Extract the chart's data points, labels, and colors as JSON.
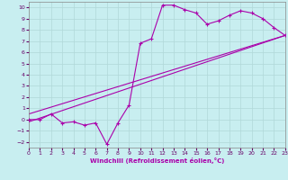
{
  "xlabel": "Windchill (Refroidissement éolien,°C)",
  "bg_color": "#c8eef0",
  "grid_color": "#b0d8d8",
  "line_color": "#aa00aa",
  "markersize": 2.5,
  "xlim": [
    0,
    23
  ],
  "ylim": [
    -2.5,
    10.5
  ],
  "xticks": [
    0,
    1,
    2,
    3,
    4,
    5,
    6,
    7,
    8,
    9,
    10,
    11,
    12,
    13,
    14,
    15,
    16,
    17,
    18,
    19,
    20,
    21,
    22,
    23
  ],
  "yticks": [
    -2,
    -1,
    0,
    1,
    2,
    3,
    4,
    5,
    6,
    7,
    8,
    9,
    10
  ],
  "data_line": {
    "x": [
      0,
      1,
      2,
      3,
      4,
      5,
      6,
      7,
      8,
      9,
      10,
      11,
      12,
      13,
      14,
      15,
      16,
      17,
      18,
      19,
      20,
      21,
      22,
      23
    ],
    "y": [
      0.0,
      0.0,
      0.5,
      -0.3,
      -0.2,
      -0.5,
      -0.3,
      -2.2,
      -0.3,
      1.3,
      6.8,
      7.2,
      10.2,
      10.2,
      9.8,
      9.5,
      8.5,
      8.8,
      9.3,
      9.7,
      9.5,
      9.0,
      8.2,
      7.5
    ]
  },
  "line1": {
    "x": [
      0,
      23
    ],
    "y": [
      -0.2,
      7.5
    ]
  },
  "line2": {
    "x": [
      0,
      23
    ],
    "y": [
      0.5,
      7.5
    ]
  }
}
